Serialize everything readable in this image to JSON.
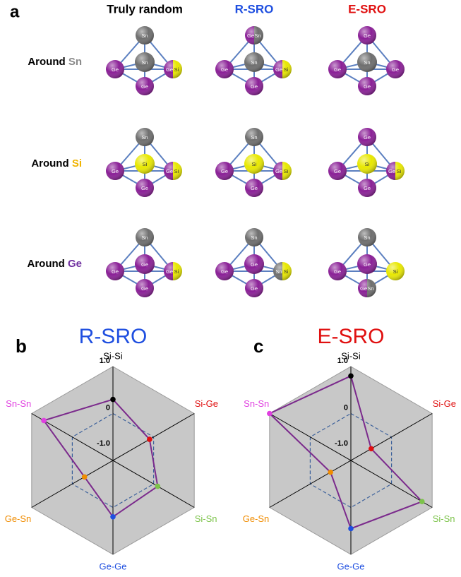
{
  "panel_a": {
    "label": "a",
    "columns": [
      {
        "text": "Truly random",
        "color": "#000000"
      },
      {
        "text": "R-SRO",
        "color": "#1f4fe0"
      },
      {
        "text": "E-SRO",
        "color": "#e01010"
      }
    ],
    "rows": [
      {
        "prefix": "Around",
        "element": "Sn"
      },
      {
        "prefix": "Around",
        "element": "Si"
      },
      {
        "prefix": "Around",
        "element": "Ge"
      }
    ],
    "element_label_colors": {
      "Sn": "#8a8a8a",
      "Si": "#f0b400",
      "Ge": "#7030a0"
    },
    "element_atom_colors": {
      "Sn": "#6e6e6e",
      "Si": "#e8e800",
      "Ge": "#8a1f96"
    },
    "cells": [
      [
        [
          [
            "Sn"
          ],
          [
            "Sn"
          ],
          [
            "Ge"
          ],
          [
            "Ge",
            "Si"
          ],
          [
            "Ge"
          ]
        ],
        [
          [
            "Ge",
            "Sn"
          ],
          [
            "Sn"
          ],
          [
            "Ge"
          ],
          [
            "Ge",
            "Si"
          ],
          [
            "Ge"
          ]
        ],
        [
          [
            "Ge"
          ],
          [
            "Sn"
          ],
          [
            "Ge"
          ],
          [
            "Ge"
          ],
          [
            "Ge"
          ]
        ]
      ],
      [
        [
          [
            "Sn"
          ],
          [
            "Si"
          ],
          [
            "Ge"
          ],
          [
            "Ge",
            "Si"
          ],
          [
            "Ge"
          ]
        ],
        [
          [
            "Sn"
          ],
          [
            "Si"
          ],
          [
            "Ge"
          ],
          [
            "Ge",
            "Si"
          ],
          [
            "Ge"
          ]
        ],
        [
          [
            "Ge"
          ],
          [
            "Si"
          ],
          [
            "Ge"
          ],
          [
            "Ge",
            "Si"
          ],
          [
            "Ge"
          ]
        ]
      ],
      [
        [
          [
            "Sn"
          ],
          [
            "Ge"
          ],
          [
            "Ge"
          ],
          [
            "Ge",
            "Si"
          ],
          [
            "Ge"
          ]
        ],
        [
          [
            "Sn"
          ],
          [
            "Ge"
          ],
          [
            "Ge"
          ],
          [
            "Sn",
            "Si"
          ],
          [
            "Ge"
          ]
        ],
        [
          [
            "Sn"
          ],
          [
            "Ge"
          ],
          [
            "Ge"
          ],
          [
            "Si"
          ],
          [
            "Ge",
            "Sn"
          ]
        ]
      ]
    ]
  },
  "chart_data": [
    {
      "type": "radar",
      "panel_label": "b",
      "title": "R-SRO",
      "title_color": "#1f4fe0",
      "categories": [
        "Si-Si",
        "Si-Ge",
        "Si-Sn",
        "Ge-Ge",
        "Ge-Sn",
        "Sn-Sn"
      ],
      "category_colors": [
        "#000000",
        "#e01010",
        "#7cc34a",
        "#1f4fe0",
        "#f08c00",
        "#e040e0"
      ],
      "values": [
        0.3,
        -0.1,
        0.1,
        0.2,
        -0.3,
        0.7
      ],
      "line_color": "#7b2a8c",
      "ylim": [
        -1,
        1
      ],
      "yticks": [
        {
          "value": 1,
          "label": "1.0"
        },
        0,
        {
          "value": -1,
          "label": "-1.0"
        }
      ]
    },
    {
      "type": "radar",
      "panel_label": "c",
      "title": "E-SRO",
      "title_color": "#e01010",
      "categories": [
        "Si-Si",
        "Si-Ge",
        "Si-Sn",
        "Ge-Ge",
        "Ge-Sn",
        "Sn-Sn"
      ],
      "category_colors": [
        "#000000",
        "#e01010",
        "#7cc34a",
        "#1f4fe0",
        "#f08c00",
        "#e040e0"
      ],
      "values": [
        0.8,
        -0.5,
        0.75,
        0.45,
        -0.5,
        1.0
      ],
      "line_color": "#7b2a8c",
      "ylim": [
        -1,
        1
      ],
      "yticks": [
        {
          "value": 1,
          "label": "1.0"
        },
        0,
        {
          "value": -1,
          "label": "-1.0"
        }
      ]
    }
  ]
}
